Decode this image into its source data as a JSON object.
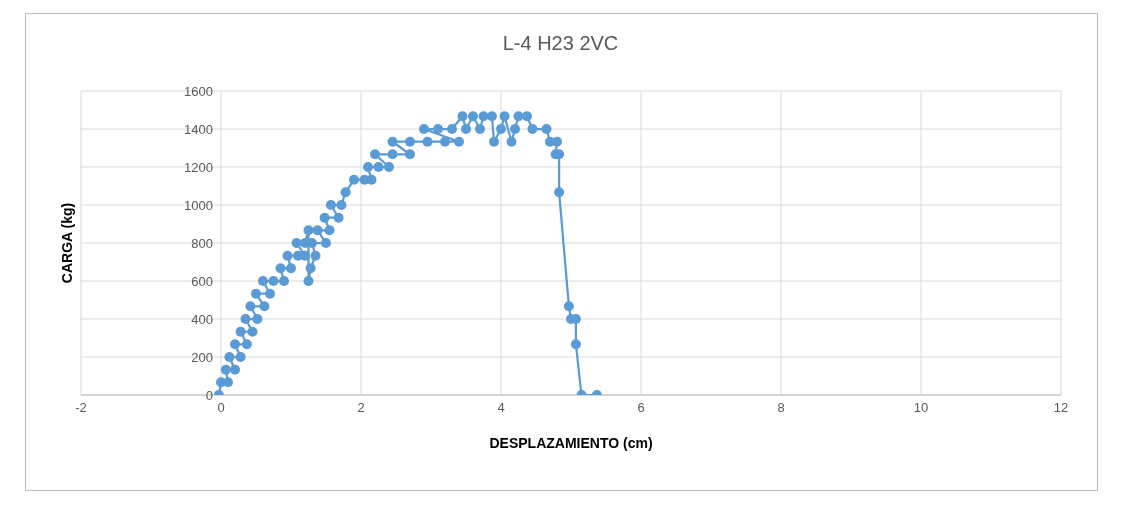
{
  "chart_data": {
    "type": "line",
    "title": "L-4 H23 2VC",
    "xlabel": "DESPLAZAMIENTO (cm)",
    "ylabel": "CARGA (kg)",
    "xlim": [
      -2,
      12
    ],
    "xticks": [
      -2,
      0,
      2,
      4,
      6,
      8,
      10,
      12
    ],
    "ylim": [
      0,
      1600
    ],
    "yticks": [
      0,
      200,
      400,
      600,
      800,
      1000,
      1200,
      1400,
      1600
    ],
    "grid": true,
    "marker": "circle",
    "line_style": "solid",
    "series": [
      {
        "color": "#5b9bd5",
        "x": [
          -0.03,
          0,
          0.1,
          0.07,
          0.2,
          0.12,
          0.28,
          0.2,
          0.37,
          0.28,
          0.45,
          0.35,
          0.52,
          0.42,
          0.62,
          0.5,
          0.7,
          0.6,
          0.75,
          0.9,
          0.85,
          1.0,
          0.95,
          1.1,
          1.2,
          1.08,
          1.2,
          1.25,
          1.25,
          1.28,
          1.35,
          1.3,
          1.5,
          1.38,
          1.55,
          1.48,
          1.68,
          1.57,
          1.72,
          1.78,
          1.9,
          2.05,
          2.15,
          2.1,
          2.25,
          2.4,
          2.2,
          2.45,
          2.7,
          2.45,
          2.7,
          2.95,
          3.2,
          3.4,
          2.9,
          3.1,
          3.3,
          3.45,
          3.5,
          3.6,
          3.7,
          3.75,
          3.87,
          3.9,
          4.0,
          4.05,
          4.15,
          4.2,
          4.25,
          4.37,
          4.45,
          4.65,
          4.7,
          4.8,
          4.78,
          4.83,
          4.83,
          4.97,
          5.0,
          5.07,
          5.07,
          5.15,
          5.37
        ],
        "values": [
          0,
          67,
          67,
          133,
          133,
          200,
          200,
          267,
          267,
          333,
          333,
          400,
          400,
          467,
          467,
          533,
          533,
          600,
          600,
          600,
          667,
          667,
          733,
          733,
          733,
          800,
          800,
          867,
          600,
          667,
          733,
          800,
          800,
          867,
          867,
          933,
          933,
          1000,
          1000,
          1067,
          1133,
          1133,
          1133,
          1200,
          1200,
          1200,
          1267,
          1267,
          1267,
          1333,
          1333,
          1333,
          1333,
          1333,
          1400,
          1400,
          1400,
          1467,
          1400,
          1467,
          1400,
          1467,
          1467,
          1333,
          1400,
          1467,
          1333,
          1400,
          1467,
          1467,
          1400,
          1400,
          1333,
          1333,
          1267,
          1267,
          1067,
          467,
          400,
          400,
          267,
          0,
          0
        ]
      }
    ]
  }
}
